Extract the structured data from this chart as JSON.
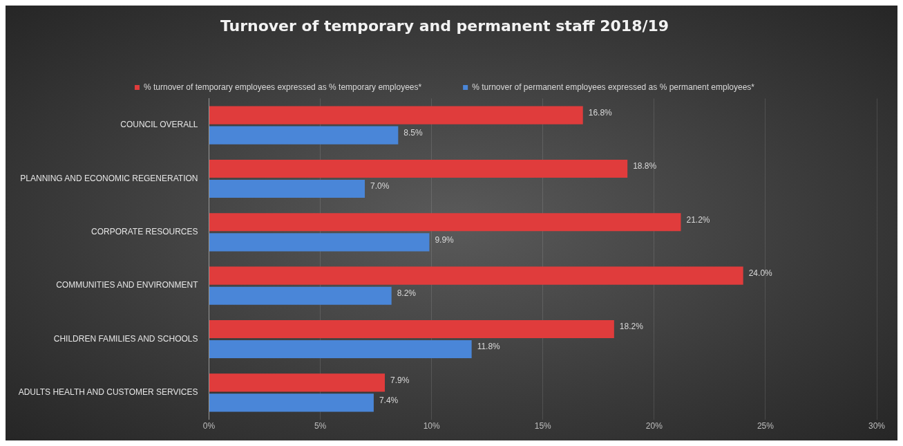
{
  "chart_data": {
    "type": "bar",
    "orientation": "horizontal",
    "title": "Turnover of temporary and permanent staff 2018/19",
    "categories": [
      "COUNCIL OVERALL",
      "PLANNING AND ECONOMIC REGENERATION",
      "CORPORATE RESOURCES",
      "COMMUNITIES AND ENVIRONMENT",
      "CHILDREN FAMILIES AND SCHOOLS",
      "ADULTS HEALTH AND CUSTOMER SERVICES"
    ],
    "series": [
      {
        "name": "% turnover of temporary employees expressed as % temporary employees*",
        "color": "#e03c3c",
        "values": [
          16.8,
          18.8,
          21.2,
          24.0,
          18.2,
          7.9
        ],
        "value_labels": [
          "16.8%",
          "18.8%",
          "21.2%",
          "24.0%",
          "18.2%",
          "7.9%"
        ]
      },
      {
        "name": "% turnover of permanent employees expressed as % permanent employees*",
        "color": "#4a86d8",
        "values": [
          8.5,
          7.0,
          9.9,
          8.2,
          11.8,
          7.4
        ],
        "value_labels": [
          "8.5%",
          "7.0%",
          "9.9%",
          "8.2%",
          "11.8%",
          "7.4%"
        ]
      }
    ],
    "xlim": [
      0,
      30
    ],
    "xticks": [
      {
        "value": 0,
        "label": "0%"
      },
      {
        "value": 5,
        "label": "5%"
      },
      {
        "value": 10,
        "label": "10%"
      },
      {
        "value": 15,
        "label": "15%"
      },
      {
        "value": 20,
        "label": "20%"
      },
      {
        "value": 25,
        "label": "25%"
      },
      {
        "value": 30,
        "label": "30%"
      }
    ],
    "grid": "x",
    "legend": "top"
  }
}
